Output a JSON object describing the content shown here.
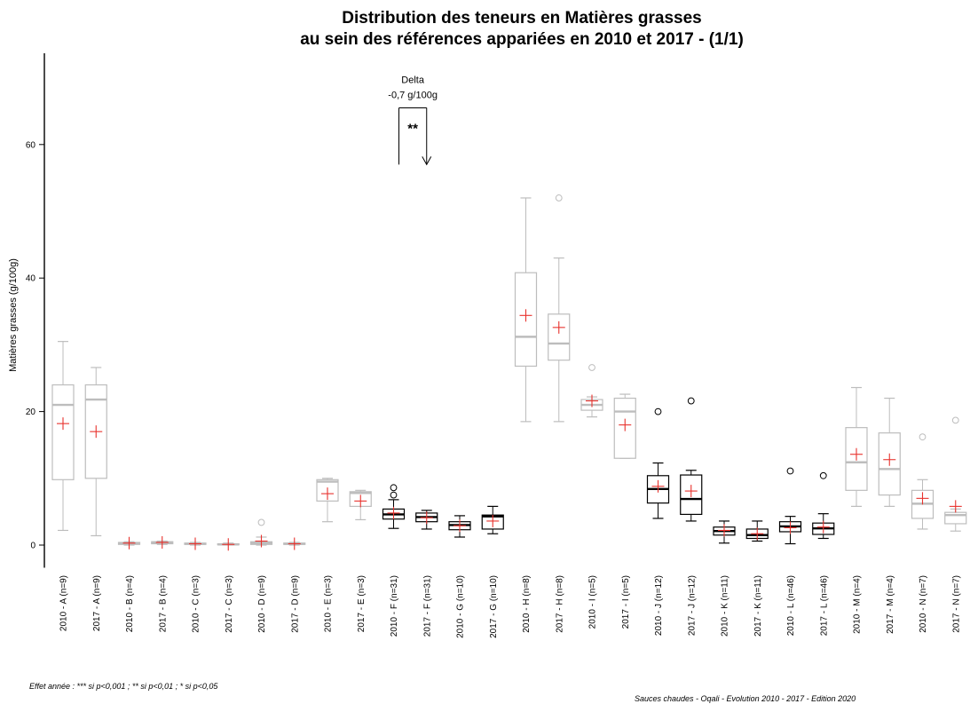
{
  "chart_data": {
    "type": "box",
    "title": [
      "Distribution des teneurs en Matières grasses",
      "au sein des références appariées en 2010 et 2017 - (1/1)"
    ],
    "ylabel": "Matières grasses (g/100g)",
    "ylim": [
      -3,
      73
    ],
    "yticks": [
      0,
      20,
      40,
      60
    ],
    "grid": false,
    "colors": {
      "significant": "#000000",
      "not_significant": "#bdbdbd",
      "mean_marker": "#e8322d"
    },
    "boxes": [
      {
        "label": "2010 - A (n=9)",
        "significant": false,
        "whisker_low": 2.2,
        "q1": 9.8,
        "median": 21.0,
        "q3": 24.0,
        "whisker_high": 30.5,
        "mean": 18.2,
        "outliers": []
      },
      {
        "label": "2017 - A (n=9)",
        "significant": false,
        "whisker_low": 1.4,
        "q1": 10.0,
        "median": 21.8,
        "q3": 24.0,
        "whisker_high": 26.6,
        "mean": 17.0,
        "outliers": []
      },
      {
        "label": "2010 - B (n=4)",
        "significant": false,
        "whisker_low": 0.0,
        "q1": 0.1,
        "median": 0.3,
        "q3": 0.4,
        "whisker_high": 0.5,
        "mean": 0.3,
        "outliers": []
      },
      {
        "label": "2017 - B (n=4)",
        "significant": false,
        "whisker_low": 0.1,
        "q1": 0.2,
        "median": 0.4,
        "q3": 0.5,
        "whisker_high": 0.6,
        "mean": 0.4,
        "outliers": []
      },
      {
        "label": "2010 - C (n=3)",
        "significant": false,
        "whisker_low": 0.0,
        "q1": 0.1,
        "median": 0.2,
        "q3": 0.3,
        "whisker_high": 0.4,
        "mean": 0.2,
        "outliers": []
      },
      {
        "label": "2017 - C (n=3)",
        "significant": false,
        "whisker_low": 0.0,
        "q1": 0.05,
        "median": 0.1,
        "q3": 0.2,
        "whisker_high": 0.3,
        "mean": 0.1,
        "outliers": []
      },
      {
        "label": "2010 - D (n=9)",
        "significant": false,
        "whisker_low": 0.0,
        "q1": 0.1,
        "median": 0.3,
        "q3": 0.5,
        "whisker_high": 1.2,
        "mean": 0.6,
        "outliers": [
          3.4
        ]
      },
      {
        "label": "2017 - D (n=9)",
        "significant": false,
        "whisker_low": 0.0,
        "q1": 0.1,
        "median": 0.2,
        "q3": 0.3,
        "whisker_high": 0.4,
        "mean": 0.2,
        "outliers": []
      },
      {
        "label": "2010 - E (n=3)",
        "significant": false,
        "whisker_low": 3.5,
        "q1": 6.6,
        "median": 9.5,
        "q3": 9.8,
        "whisker_high": 10.0,
        "mean": 7.7,
        "outliers": []
      },
      {
        "label": "2017 - E (n=3)",
        "significant": false,
        "whisker_low": 3.8,
        "q1": 5.8,
        "median": 7.8,
        "q3": 8.0,
        "whisker_high": 8.2,
        "mean": 6.6,
        "outliers": []
      },
      {
        "label": "2010 - F (n=31)",
        "significant": true,
        "whisker_low": 2.5,
        "q1": 3.9,
        "median": 4.6,
        "q3": 5.4,
        "whisker_high": 6.8,
        "mean": 4.8,
        "outliers": [
          7.5,
          8.6
        ]
      },
      {
        "label": "2017 - F (n=31)",
        "significant": true,
        "whisker_low": 2.4,
        "q1": 3.5,
        "median": 4.2,
        "q3": 4.8,
        "whisker_high": 5.2,
        "mean": 4.1,
        "outliers": []
      },
      {
        "label": "2010 - G (n=10)",
        "significant": true,
        "whisker_low": 1.2,
        "q1": 2.3,
        "median": 3.0,
        "q3": 3.5,
        "whisker_high": 4.4,
        "mean": 2.9,
        "outliers": []
      },
      {
        "label": "2017 - G (n=10)",
        "significant": true,
        "whisker_low": 1.7,
        "q1": 2.4,
        "median": 4.3,
        "q3": 4.5,
        "whisker_high": 5.8,
        "mean": 3.6,
        "outliers": []
      },
      {
        "label": "2010 - H (n=8)",
        "significant": false,
        "whisker_low": 18.5,
        "q1": 26.8,
        "median": 31.2,
        "q3": 40.8,
        "whisker_high": 52.0,
        "mean": 34.4,
        "outliers": []
      },
      {
        "label": "2017 - H (n=8)",
        "significant": false,
        "whisker_low": 18.5,
        "q1": 27.7,
        "median": 30.2,
        "q3": 34.6,
        "whisker_high": 43.0,
        "mean": 32.6,
        "outliers": [
          52.0
        ]
      },
      {
        "label": "2010 - I (n=5)",
        "significant": false,
        "whisker_low": 19.2,
        "q1": 20.2,
        "median": 21.0,
        "q3": 21.8,
        "whisker_high": 22.2,
        "mean": 21.6,
        "outliers": [
          26.6
        ]
      },
      {
        "label": "2017 - I (n=5)",
        "significant": false,
        "whisker_low": 13.0,
        "q1": 13.0,
        "median": 20.0,
        "q3": 22.0,
        "whisker_high": 22.6,
        "mean": 18.0,
        "outliers": []
      },
      {
        "label": "2010 - J (n=12)",
        "significant": true,
        "whisker_low": 4.0,
        "q1": 6.3,
        "median": 8.4,
        "q3": 10.4,
        "whisker_high": 12.3,
        "mean": 8.8,
        "outliers": [
          20.0
        ]
      },
      {
        "label": "2017 - J (n=12)",
        "significant": true,
        "whisker_low": 3.6,
        "q1": 4.6,
        "median": 6.9,
        "q3": 10.5,
        "whisker_high": 11.2,
        "mean": 8.1,
        "outliers": [
          21.6
        ]
      },
      {
        "label": "2010 - K (n=11)",
        "significant": true,
        "whisker_low": 0.3,
        "q1": 1.5,
        "median": 2.1,
        "q3": 2.7,
        "whisker_high": 3.6,
        "mean": 2.2,
        "outliers": []
      },
      {
        "label": "2017 - K (n=11)",
        "significant": true,
        "whisker_low": 0.6,
        "q1": 1.0,
        "median": 1.5,
        "q3": 2.4,
        "whisker_high": 3.6,
        "mean": 1.7,
        "outliers": []
      },
      {
        "label": "2010 - L (n=46)",
        "significant": true,
        "whisker_low": 0.2,
        "q1": 2.0,
        "median": 2.8,
        "q3": 3.5,
        "whisker_high": 4.3,
        "mean": 2.6,
        "outliers": [
          11.1
        ]
      },
      {
        "label": "2017 - L (n=46)",
        "significant": true,
        "whisker_low": 1.0,
        "q1": 1.6,
        "median": 2.5,
        "q3": 3.3,
        "whisker_high": 4.7,
        "mean": 2.7,
        "outliers": [
          10.4
        ]
      },
      {
        "label": "2010 - M (n=4)",
        "significant": false,
        "whisker_low": 5.8,
        "q1": 8.2,
        "median": 12.4,
        "q3": 17.6,
        "whisker_high": 23.6,
        "mean": 13.6,
        "outliers": []
      },
      {
        "label": "2017 - M (n=4)",
        "significant": false,
        "whisker_low": 5.8,
        "q1": 7.5,
        "median": 11.4,
        "q3": 16.8,
        "whisker_high": 22.0,
        "mean": 12.8,
        "outliers": []
      },
      {
        "label": "2010 - N (n=7)",
        "significant": false,
        "whisker_low": 2.4,
        "q1": 4.0,
        "median": 6.2,
        "q3": 8.2,
        "whisker_high": 9.8,
        "mean": 7.0,
        "outliers": [
          16.2
        ]
      },
      {
        "label": "2017 - N (n=7)",
        "significant": false,
        "whisker_low": 2.1,
        "q1": 3.2,
        "median": 4.5,
        "q3": 4.9,
        "whisker_high": 5.4,
        "mean": 5.8,
        "outliers": [
          18.7
        ]
      }
    ],
    "annotations": [
      {
        "type": "delta",
        "pair": "F",
        "between": [
          "2010 - F (n=31)",
          "2017 - F (n=31)"
        ],
        "label_lines": [
          "Delta",
          "-0,7 g/100g"
        ],
        "significance": "**",
        "bracket_from": 57,
        "bracket_to": 65.5,
        "arrow_to": 57
      }
    ]
  },
  "footnotes": {
    "significance_legend": "Effet année : *** si p<0,001 ; ** si p<0,01 ; * si p<0,05",
    "source": "Sauces chaudes - Oqali - Evolution 2010 - 2017 - Edition 2020"
  }
}
